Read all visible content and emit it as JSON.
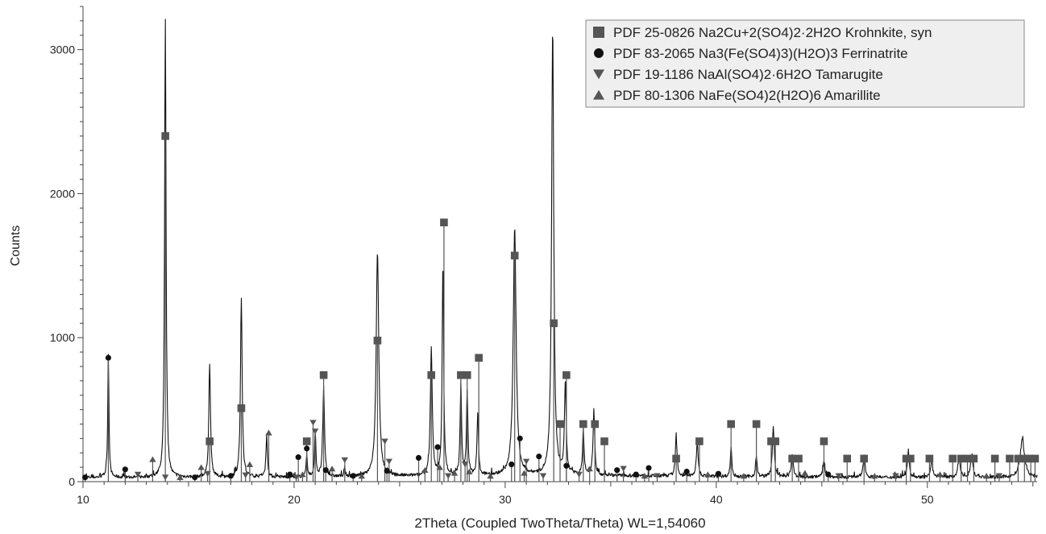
{
  "chart_data": {
    "type": "line",
    "title": "",
    "xlabel": "2Theta (Coupled TwoTheta/Theta) WL=1,54060",
    "ylabel": "Counts",
    "xlim": [
      10,
      55.2
    ],
    "ylim": [
      0,
      3300
    ],
    "xticks": [
      10,
      20,
      30,
      40,
      50
    ],
    "yticks": [
      0,
      1000,
      2000,
      3000
    ],
    "grid": false,
    "legend_position": "top-right",
    "colors": {
      "pattern": "#111111",
      "markers": "#555555",
      "circles": "#111111"
    },
    "pattern_peaks": [
      {
        "x": 11.2,
        "y": 860,
        "w": 0.05
      },
      {
        "x": 13.9,
        "y": 3180,
        "w": 0.06
      },
      {
        "x": 16.0,
        "y": 780,
        "w": 0.07
      },
      {
        "x": 17.5,
        "y": 1240,
        "w": 0.07
      },
      {
        "x": 18.7,
        "y": 290,
        "w": 0.06
      },
      {
        "x": 20.6,
        "y": 150,
        "w": 0.05
      },
      {
        "x": 21.0,
        "y": 300,
        "w": 0.06
      },
      {
        "x": 21.4,
        "y": 620,
        "w": 0.07
      },
      {
        "x": 22.4,
        "y": 60,
        "w": 0.05
      },
      {
        "x": 23.95,
        "y": 1560,
        "w": 0.11
      },
      {
        "x": 26.5,
        "y": 880,
        "w": 0.08
      },
      {
        "x": 27.05,
        "y": 1500,
        "w": 0.06
      },
      {
        "x": 27.9,
        "y": 640,
        "w": 0.06
      },
      {
        "x": 28.2,
        "y": 580,
        "w": 0.06
      },
      {
        "x": 28.7,
        "y": 430,
        "w": 0.06
      },
      {
        "x": 30.45,
        "y": 1720,
        "w": 0.12
      },
      {
        "x": 32.25,
        "y": 3100,
        "w": 0.09
      },
      {
        "x": 32.85,
        "y": 640,
        "w": 0.07
      },
      {
        "x": 33.7,
        "y": 320,
        "w": 0.06
      },
      {
        "x": 34.2,
        "y": 450,
        "w": 0.07
      },
      {
        "x": 38.1,
        "y": 280,
        "w": 0.07
      },
      {
        "x": 39.1,
        "y": 220,
        "w": 0.08
      },
      {
        "x": 40.7,
        "y": 210,
        "w": 0.06
      },
      {
        "x": 41.9,
        "y": 150,
        "w": 0.06
      },
      {
        "x": 42.7,
        "y": 340,
        "w": 0.08
      },
      {
        "x": 43.6,
        "y": 150,
        "w": 0.08
      },
      {
        "x": 45.1,
        "y": 120,
        "w": 0.08
      },
      {
        "x": 47.0,
        "y": 160,
        "w": 0.08
      },
      {
        "x": 49.1,
        "y": 180,
        "w": 0.08
      },
      {
        "x": 50.2,
        "y": 120,
        "w": 0.08
      },
      {
        "x": 51.5,
        "y": 130,
        "w": 0.1
      },
      {
        "x": 52.1,
        "y": 150,
        "w": 0.1
      },
      {
        "x": 54.5,
        "y": 260,
        "w": 0.18
      }
    ],
    "series": [
      {
        "name": "PDF 25-0826 Na2Cu+2(SO4)2·2H2O Krohnkite, syn",
        "marker": "square",
        "x": [
          13.9,
          16.0,
          17.5,
          20.6,
          21.4,
          23.95,
          26.5,
          27.1,
          27.9,
          28.2,
          28.75,
          30.45,
          32.3,
          32.6,
          32.9,
          33.7,
          34.25,
          34.7,
          38.1,
          39.2,
          40.7,
          41.9,
          42.6,
          42.8,
          43.6,
          43.9,
          45.1,
          46.2,
          47.0,
          49.0,
          49.2,
          50.1,
          51.2,
          51.6,
          51.9,
          52.2,
          53.2,
          53.9,
          54.3,
          54.6,
          54.9,
          55.1
        ],
        "y": [
          2400,
          280,
          510,
          280,
          740,
          980,
          740,
          1800,
          740,
          740,
          860,
          1570,
          1100,
          400,
          740,
          400,
          400,
          280,
          160,
          280,
          400,
          400,
          280,
          280,
          160,
          160,
          280,
          160,
          160,
          160,
          160,
          160,
          160,
          160,
          160,
          160,
          160,
          160,
          160,
          160,
          160,
          160
        ]
      },
      {
        "name": "PDF 83-2065 Na3(Fe(SO4)3)(H2O)3 Ferrinatrite",
        "marker": "circle",
        "x": [
          10.1,
          11.2,
          12.0,
          15.3,
          17.0,
          19.8,
          20.2,
          20.6,
          21.5,
          22.8,
          24.4,
          25.9,
          26.8,
          30.3,
          30.7,
          31.6,
          32.9,
          35.3,
          36.2,
          36.8,
          38.6,
          40.1,
          45.3
        ],
        "y": [
          30,
          860,
          85,
          30,
          40,
          50,
          170,
          230,
          80,
          40,
          75,
          165,
          240,
          120,
          300,
          175,
          110,
          80,
          50,
          95,
          70,
          55,
          50
        ]
      },
      {
        "name": "PDF 19-1186 NaAl(SO4)2·6H2O Tamarugite",
        "marker": "triangle-down",
        "x": [
          12.6,
          13.9,
          15.9,
          17.7,
          20.1,
          20.9,
          21.0,
          22.4,
          24.3,
          24.5,
          27.3,
          28.1,
          31.0,
          31.8,
          33.5,
          35.6,
          37.2,
          45.8,
          48.5,
          53.4
        ],
        "y": [
          50,
          30,
          55,
          45,
          30,
          410,
          350,
          150,
          280,
          140,
          40,
          120,
          140,
          40,
          50,
          90,
          40,
          40,
          40,
          40
        ]
      },
      {
        "name": "PDF 80-1306 NaFe(SO4)2(H2O)6 Amarillite",
        "marker": "triangle-up",
        "x": [
          13.3,
          14.6,
          15.6,
          17.9,
          18.8,
          20.4,
          21.8,
          23.2,
          26.2,
          26.9,
          27.6,
          28.3,
          29.3,
          30.9,
          34.0,
          36.6,
          39.6,
          41.3,
          44.2,
          47.5,
          50.6,
          52.8
        ],
        "y": [
          155,
          30,
          100,
          120,
          340,
          50,
          90,
          40,
          80,
          100,
          60,
          70,
          40,
          60,
          90,
          40,
          50,
          40,
          60,
          40,
          50,
          40
        ]
      }
    ]
  }
}
